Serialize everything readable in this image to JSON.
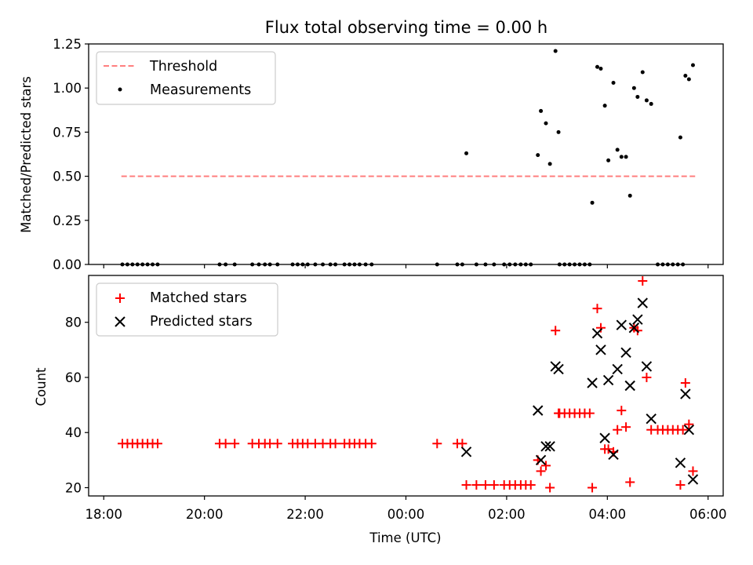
{
  "chart_data": [
    {
      "type": "scatter",
      "title": "Flux total observing time = 0.00 h",
      "xlabel": "",
      "ylabel": "Matched/Predicted stars",
      "xlim": [
        17.7,
        30.3
      ],
      "ylim": [
        0,
        1.25
      ],
      "yticks": [
        0,
        0.25,
        0.5,
        0.75,
        1.0,
        1.25
      ],
      "ytick_labels": [
        "0.00",
        "0.25",
        "0.50",
        "0.75",
        "1.00",
        "1.25"
      ],
      "legend": [
        "Threshold",
        "Measurements"
      ],
      "threshold": {
        "name": "Threshold",
        "value": 0.5,
        "x_range": [
          18.35,
          29.75
        ],
        "color": "#ff7f7f"
      },
      "series": [
        {
          "name": "Measurements",
          "color": "#000000",
          "points": [
            [
              18.37,
              0
            ],
            [
              18.47,
              0
            ],
            [
              18.57,
              0
            ],
            [
              18.67,
              0
            ],
            [
              18.77,
              0
            ],
            [
              18.87,
              0
            ],
            [
              18.97,
              0
            ],
            [
              19.07,
              0
            ],
            [
              20.3,
              0
            ],
            [
              20.42,
              0
            ],
            [
              20.6,
              0
            ],
            [
              20.95,
              0
            ],
            [
              21.08,
              0
            ],
            [
              21.2,
              0
            ],
            [
              21.3,
              0
            ],
            [
              21.45,
              0
            ],
            [
              21.75,
              0
            ],
            [
              21.85,
              0
            ],
            [
              21.95,
              0
            ],
            [
              22.05,
              0
            ],
            [
              22.2,
              0
            ],
            [
              22.35,
              0
            ],
            [
              22.5,
              0
            ],
            [
              22.6,
              0
            ],
            [
              22.78,
              0
            ],
            [
              22.88,
              0
            ],
            [
              22.98,
              0
            ],
            [
              23.08,
              0
            ],
            [
              23.2,
              0
            ],
            [
              23.32,
              0
            ],
            [
              24.62,
              0
            ],
            [
              25.02,
              0
            ],
            [
              25.12,
              0
            ],
            [
              25.4,
              0
            ],
            [
              25.58,
              0
            ],
            [
              25.75,
              0
            ],
            [
              25.95,
              0
            ],
            [
              26.06,
              0
            ],
            [
              26.17,
              0
            ],
            [
              26.28,
              0
            ],
            [
              26.38,
              0
            ],
            [
              26.48,
              0
            ],
            [
              27.05,
              0
            ],
            [
              27.15,
              0
            ],
            [
              27.25,
              0
            ],
            [
              27.35,
              0
            ],
            [
              27.45,
              0
            ],
            [
              27.55,
              0
            ],
            [
              27.65,
              0
            ],
            [
              29.0,
              0
            ],
            [
              29.1,
              0
            ],
            [
              29.2,
              0
            ],
            [
              29.3,
              0
            ],
            [
              29.4,
              0
            ],
            [
              29.5,
              0
            ],
            [
              25.2,
              0.63
            ],
            [
              26.62,
              0.62
            ],
            [
              26.68,
              0.87
            ],
            [
              26.78,
              0.8
            ],
            [
              26.86,
              0.57
            ],
            [
              26.97,
              1.21
            ],
            [
              27.03,
              0.75
            ],
            [
              27.7,
              0.35
            ],
            [
              27.8,
              1.12
            ],
            [
              27.87,
              1.11
            ],
            [
              27.95,
              0.9
            ],
            [
              28.02,
              0.59
            ],
            [
              28.12,
              1.03
            ],
            [
              28.2,
              0.65
            ],
            [
              28.28,
              0.61
            ],
            [
              28.37,
              0.61
            ],
            [
              28.45,
              0.39
            ],
            [
              28.53,
              1.0
            ],
            [
              28.6,
              0.95
            ],
            [
              28.7,
              1.09
            ],
            [
              28.78,
              0.93
            ],
            [
              28.87,
              0.91
            ],
            [
              29.45,
              0.72
            ],
            [
              29.55,
              1.07
            ],
            [
              29.62,
              1.05
            ],
            [
              29.7,
              1.13
            ]
          ]
        }
      ]
    },
    {
      "type": "scatter",
      "title": "",
      "xlabel": "Time (UTC)",
      "ylabel": "Count",
      "xlim": [
        17.7,
        30.3
      ],
      "ylim": [
        17,
        97
      ],
      "yticks": [
        20,
        40,
        60,
        80
      ],
      "ytick_labels": [
        "20",
        "40",
        "60",
        "80"
      ],
      "xticks": [
        18,
        20,
        22,
        24,
        26,
        28,
        30
      ],
      "xtick_labels": [
        "18:00",
        "20:00",
        "22:00",
        "00:00",
        "02:00",
        "04:00",
        "06:00"
      ],
      "legend": [
        "Matched stars",
        "Predicted stars"
      ],
      "series": [
        {
          "name": "Matched stars",
          "marker": "+",
          "color": "#ff0000",
          "points": [
            [
              18.37,
              36
            ],
            [
              18.47,
              36
            ],
            [
              18.57,
              36
            ],
            [
              18.67,
              36
            ],
            [
              18.77,
              36
            ],
            [
              18.87,
              36
            ],
            [
              18.97,
              36
            ],
            [
              19.07,
              36
            ],
            [
              20.3,
              36
            ],
            [
              20.42,
              36
            ],
            [
              20.6,
              36
            ],
            [
              20.95,
              36
            ],
            [
              21.08,
              36
            ],
            [
              21.2,
              36
            ],
            [
              21.3,
              36
            ],
            [
              21.45,
              36
            ],
            [
              21.75,
              36
            ],
            [
              21.85,
              36
            ],
            [
              21.95,
              36
            ],
            [
              22.05,
              36
            ],
            [
              22.2,
              36
            ],
            [
              22.35,
              36
            ],
            [
              22.5,
              36
            ],
            [
              22.6,
              36
            ],
            [
              22.78,
              36
            ],
            [
              22.88,
              36
            ],
            [
              22.98,
              36
            ],
            [
              23.08,
              36
            ],
            [
              23.2,
              36
            ],
            [
              23.32,
              36
            ],
            [
              24.62,
              36
            ],
            [
              25.02,
              36
            ],
            [
              25.12,
              36
            ],
            [
              25.2,
              21
            ],
            [
              25.4,
              21
            ],
            [
              25.58,
              21
            ],
            [
              25.75,
              21
            ],
            [
              25.95,
              21
            ],
            [
              26.06,
              21
            ],
            [
              26.17,
              21
            ],
            [
              26.28,
              21
            ],
            [
              26.38,
              21
            ],
            [
              26.48,
              21
            ],
            [
              26.62,
              30
            ],
            [
              26.68,
              26
            ],
            [
              26.78,
              28
            ],
            [
              26.86,
              20
            ],
            [
              26.97,
              77
            ],
            [
              27.03,
              47
            ],
            [
              27.05,
              47
            ],
            [
              27.15,
              47
            ],
            [
              27.25,
              47
            ],
            [
              27.35,
              47
            ],
            [
              27.45,
              47
            ],
            [
              27.55,
              47
            ],
            [
              27.65,
              47
            ],
            [
              27.7,
              20
            ],
            [
              27.8,
              85
            ],
            [
              27.87,
              78
            ],
            [
              27.95,
              34
            ],
            [
              28.02,
              34
            ],
            [
              28.12,
              33
            ],
            [
              28.2,
              41
            ],
            [
              28.28,
              48
            ],
            [
              28.37,
              42
            ],
            [
              28.45,
              22
            ],
            [
              28.53,
              78
            ],
            [
              28.6,
              77
            ],
            [
              28.7,
              95
            ],
            [
              28.78,
              60
            ],
            [
              28.87,
              41
            ],
            [
              29.0,
              41
            ],
            [
              29.1,
              41
            ],
            [
              29.2,
              41
            ],
            [
              29.3,
              41
            ],
            [
              29.4,
              41
            ],
            [
              29.5,
              41
            ],
            [
              29.45,
              21
            ],
            [
              29.55,
              58
            ],
            [
              29.62,
              43
            ],
            [
              29.7,
              26
            ]
          ]
        },
        {
          "name": "Predicted stars",
          "marker": "x",
          "color": "#000000",
          "points": [
            [
              25.2,
              33
            ],
            [
              26.62,
              48
            ],
            [
              26.68,
              30
            ],
            [
              26.78,
              35
            ],
            [
              26.86,
              35
            ],
            [
              26.97,
              64
            ],
            [
              27.03,
              63
            ],
            [
              27.7,
              58
            ],
            [
              27.8,
              76
            ],
            [
              27.87,
              70
            ],
            [
              27.95,
              38
            ],
            [
              28.02,
              59
            ],
            [
              28.12,
              32
            ],
            [
              28.2,
              63
            ],
            [
              28.28,
              79
            ],
            [
              28.37,
              69
            ],
            [
              28.45,
              57
            ],
            [
              28.53,
              78
            ],
            [
              28.6,
              81
            ],
            [
              28.7,
              87
            ],
            [
              28.78,
              64
            ],
            [
              28.87,
              45
            ],
            [
              29.45,
              29
            ],
            [
              29.55,
              54
            ],
            [
              29.62,
              41
            ],
            [
              29.7,
              23
            ]
          ]
        }
      ]
    }
  ]
}
